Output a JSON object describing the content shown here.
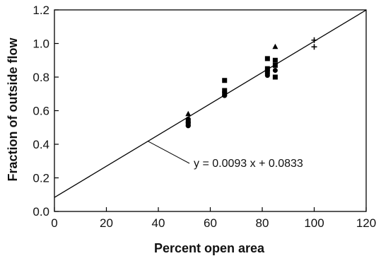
{
  "chart_data": {
    "type": "scatter",
    "title": "",
    "xlabel": "Percent open area",
    "ylabel": "Fraction of outside flow",
    "xlim": [
      0,
      120
    ],
    "ylim": [
      0,
      1.2
    ],
    "xticks": [
      "0",
      "20",
      "40",
      "60",
      "80",
      "100",
      "120"
    ],
    "yticks": [
      "0.0",
      "0.2",
      "0.4",
      "0.6",
      "0.8",
      "1.0",
      "1.2"
    ],
    "grid": false,
    "legend": "none",
    "series": [
      {
        "marker": "triangle",
        "points": [
          [
            51.5,
            0.58
          ],
          [
            85,
            0.98
          ]
        ]
      },
      {
        "marker": "square",
        "points": [
          [
            51.5,
            0.52
          ],
          [
            51.5,
            0.54
          ],
          [
            65.5,
            0.7
          ],
          [
            65.5,
            0.72
          ],
          [
            65.5,
            0.78
          ],
          [
            82,
            0.83
          ],
          [
            82,
            0.85
          ],
          [
            82,
            0.91
          ],
          [
            85,
            0.8
          ],
          [
            85,
            0.87
          ],
          [
            85,
            0.9
          ]
        ]
      },
      {
        "marker": "circle",
        "points": [
          [
            51.5,
            0.51
          ],
          [
            51.5,
            0.55
          ],
          [
            65.5,
            0.69
          ],
          [
            82,
            0.81
          ],
          [
            85,
            0.84
          ]
        ]
      },
      {
        "marker": "plus",
        "points": [
          [
            100,
            0.98
          ],
          [
            100,
            1.02
          ]
        ]
      }
    ],
    "fit_line": {
      "slope": 0.0093,
      "intercept": 0.0833,
      "x_range": [
        0,
        120
      ]
    },
    "annotation": {
      "text": "y = 0.0093 x + 0.0833",
      "points_to_x": 36
    }
  }
}
